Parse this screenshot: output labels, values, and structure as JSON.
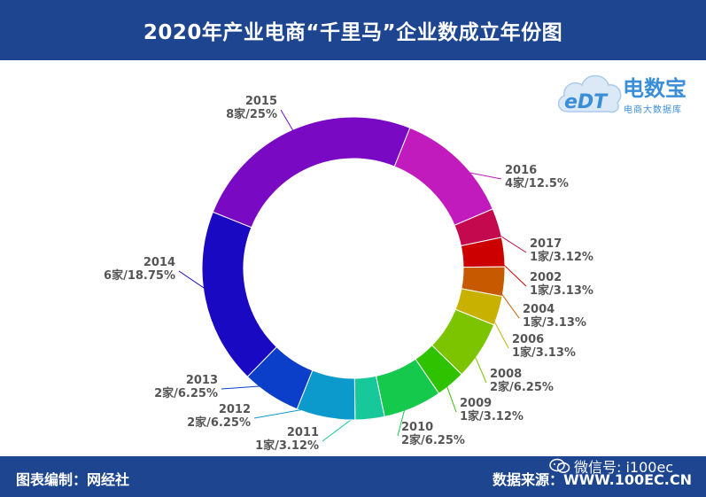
{
  "header": {
    "title": "2020年产业电商“千里马”企业数成立年份图"
  },
  "brand": {
    "name": "电数宝",
    "subtitle": "电商大数据库",
    "logo_text": "eDT"
  },
  "footer": {
    "left": "图表编制：网经社",
    "right": "数据来源：WWW.100EC.CN",
    "wechat": "微信号: i100ec"
  },
  "colors": {
    "header_bg": "#1d4590",
    "brand_blue": "#3a8ed8"
  },
  "chart_data": {
    "type": "pie",
    "donut": true,
    "title": "2020年产业电商“千里马”企业数成立年份图",
    "slices": [
      {
        "year": "2016",
        "label": "4家/12.5%",
        "count": 4,
        "percent": 12.5,
        "color": "#c21bbd"
      },
      {
        "year": "2017",
        "label": "1家/3.12%",
        "count": 1,
        "percent": 3.12,
        "color": "#c4094e"
      },
      {
        "year": "2002",
        "label": "1家/3.13%",
        "count": 1,
        "percent": 3.13,
        "color": "#cc0000"
      },
      {
        "year": "2004",
        "label": "1家/3.13%",
        "count": 1,
        "percent": 3.13,
        "color": "#c75a00"
      },
      {
        "year": "2006",
        "label": "1家/3.13%",
        "count": 1,
        "percent": 3.13,
        "color": "#c9b100"
      },
      {
        "year": "2008",
        "label": "2家/6.25%",
        "count": 2,
        "percent": 6.25,
        "color": "#7dc400"
      },
      {
        "year": "2009",
        "label": "1家/3.12%",
        "count": 1,
        "percent": 3.12,
        "color": "#2ec200"
      },
      {
        "year": "2010",
        "label": "2家/6.25%",
        "count": 2,
        "percent": 6.25,
        "color": "#15c94d"
      },
      {
        "year": "2011",
        "label": "1家/3.12%",
        "count": 1,
        "percent": 3.12,
        "color": "#17c99a"
      },
      {
        "year": "2012",
        "label": "2家/6.25%",
        "count": 2,
        "percent": 6.25,
        "color": "#0b9acb"
      },
      {
        "year": "2013",
        "label": "2家/6.25%",
        "count": 2,
        "percent": 6.25,
        "color": "#0b3fc9"
      },
      {
        "year": "2014",
        "label": "6家/18.75%",
        "count": 6,
        "percent": 18.75,
        "color": "#1a09c2"
      },
      {
        "year": "2015",
        "label": "8家/25%",
        "count": 8,
        "percent": 25,
        "color": "#7a09c4"
      }
    ]
  }
}
